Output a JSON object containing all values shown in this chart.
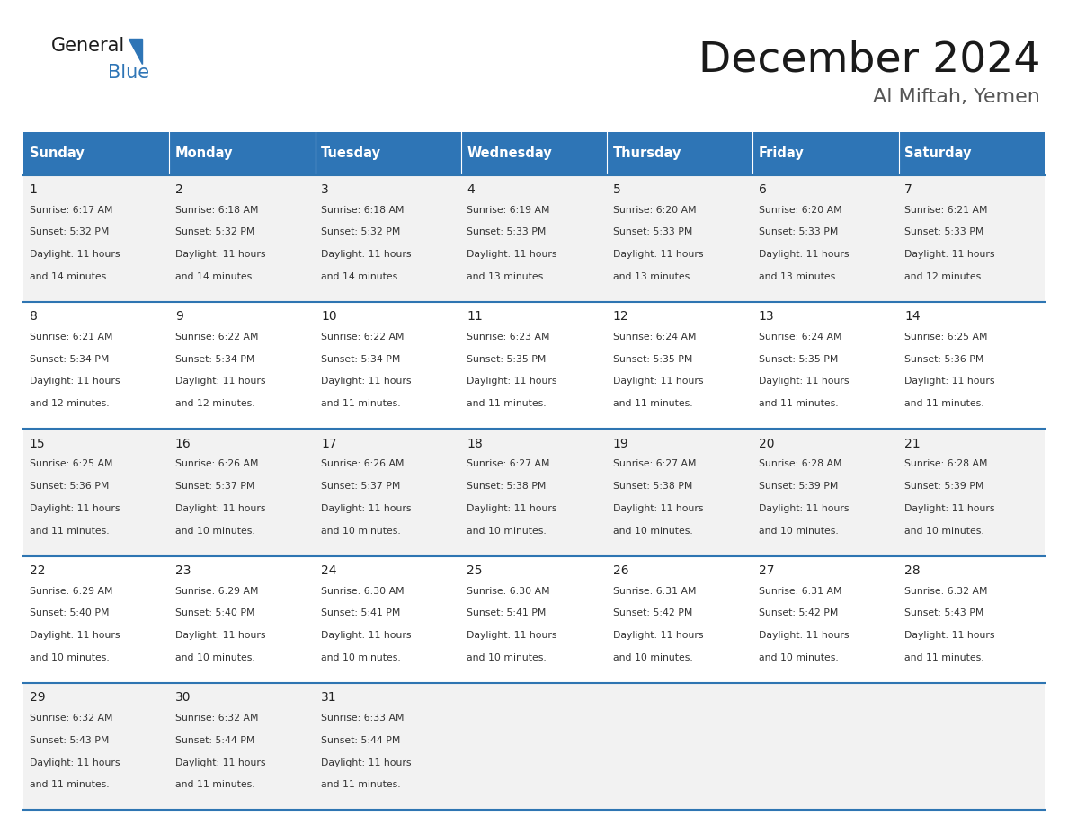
{
  "title": "December 2024",
  "subtitle": "Al Miftah, Yemen",
  "header_color": "#2E75B6",
  "header_text_color": "#FFFFFF",
  "cell_bg_even": "#F2F2F2",
  "cell_bg_odd": "#FFFFFF",
  "day_headers": [
    "Sunday",
    "Monday",
    "Tuesday",
    "Wednesday",
    "Thursday",
    "Friday",
    "Saturday"
  ],
  "separator_color": "#2E75B2",
  "days": [
    {
      "day": 1,
      "col": 0,
      "row": 0,
      "sunrise": "6:17 AM",
      "sunset": "5:32 PM",
      "daylight": "11 hours and 14 minutes."
    },
    {
      "day": 2,
      "col": 1,
      "row": 0,
      "sunrise": "6:18 AM",
      "sunset": "5:32 PM",
      "daylight": "11 hours and 14 minutes."
    },
    {
      "day": 3,
      "col": 2,
      "row": 0,
      "sunrise": "6:18 AM",
      "sunset": "5:32 PM",
      "daylight": "11 hours and 14 minutes."
    },
    {
      "day": 4,
      "col": 3,
      "row": 0,
      "sunrise": "6:19 AM",
      "sunset": "5:33 PM",
      "daylight": "11 hours and 13 minutes."
    },
    {
      "day": 5,
      "col": 4,
      "row": 0,
      "sunrise": "6:20 AM",
      "sunset": "5:33 PM",
      "daylight": "11 hours and 13 minutes."
    },
    {
      "day": 6,
      "col": 5,
      "row": 0,
      "sunrise": "6:20 AM",
      "sunset": "5:33 PM",
      "daylight": "11 hours and 13 minutes."
    },
    {
      "day": 7,
      "col": 6,
      "row": 0,
      "sunrise": "6:21 AM",
      "sunset": "5:33 PM",
      "daylight": "11 hours and 12 minutes."
    },
    {
      "day": 8,
      "col": 0,
      "row": 1,
      "sunrise": "6:21 AM",
      "sunset": "5:34 PM",
      "daylight": "11 hours and 12 minutes."
    },
    {
      "day": 9,
      "col": 1,
      "row": 1,
      "sunrise": "6:22 AM",
      "sunset": "5:34 PM",
      "daylight": "11 hours and 12 minutes."
    },
    {
      "day": 10,
      "col": 2,
      "row": 1,
      "sunrise": "6:22 AM",
      "sunset": "5:34 PM",
      "daylight": "11 hours and 11 minutes."
    },
    {
      "day": 11,
      "col": 3,
      "row": 1,
      "sunrise": "6:23 AM",
      "sunset": "5:35 PM",
      "daylight": "11 hours and 11 minutes."
    },
    {
      "day": 12,
      "col": 4,
      "row": 1,
      "sunrise": "6:24 AM",
      "sunset": "5:35 PM",
      "daylight": "11 hours and 11 minutes."
    },
    {
      "day": 13,
      "col": 5,
      "row": 1,
      "sunrise": "6:24 AM",
      "sunset": "5:35 PM",
      "daylight": "11 hours and 11 minutes."
    },
    {
      "day": 14,
      "col": 6,
      "row": 1,
      "sunrise": "6:25 AM",
      "sunset": "5:36 PM",
      "daylight": "11 hours and 11 minutes."
    },
    {
      "day": 15,
      "col": 0,
      "row": 2,
      "sunrise": "6:25 AM",
      "sunset": "5:36 PM",
      "daylight": "11 hours and 11 minutes."
    },
    {
      "day": 16,
      "col": 1,
      "row": 2,
      "sunrise": "6:26 AM",
      "sunset": "5:37 PM",
      "daylight": "11 hours and 10 minutes."
    },
    {
      "day": 17,
      "col": 2,
      "row": 2,
      "sunrise": "6:26 AM",
      "sunset": "5:37 PM",
      "daylight": "11 hours and 10 minutes."
    },
    {
      "day": 18,
      "col": 3,
      "row": 2,
      "sunrise": "6:27 AM",
      "sunset": "5:38 PM",
      "daylight": "11 hours and 10 minutes."
    },
    {
      "day": 19,
      "col": 4,
      "row": 2,
      "sunrise": "6:27 AM",
      "sunset": "5:38 PM",
      "daylight": "11 hours and 10 minutes."
    },
    {
      "day": 20,
      "col": 5,
      "row": 2,
      "sunrise": "6:28 AM",
      "sunset": "5:39 PM",
      "daylight": "11 hours and 10 minutes."
    },
    {
      "day": 21,
      "col": 6,
      "row": 2,
      "sunrise": "6:28 AM",
      "sunset": "5:39 PM",
      "daylight": "11 hours and 10 minutes."
    },
    {
      "day": 22,
      "col": 0,
      "row": 3,
      "sunrise": "6:29 AM",
      "sunset": "5:40 PM",
      "daylight": "11 hours and 10 minutes."
    },
    {
      "day": 23,
      "col": 1,
      "row": 3,
      "sunrise": "6:29 AM",
      "sunset": "5:40 PM",
      "daylight": "11 hours and 10 minutes."
    },
    {
      "day": 24,
      "col": 2,
      "row": 3,
      "sunrise": "6:30 AM",
      "sunset": "5:41 PM",
      "daylight": "11 hours and 10 minutes."
    },
    {
      "day": 25,
      "col": 3,
      "row": 3,
      "sunrise": "6:30 AM",
      "sunset": "5:41 PM",
      "daylight": "11 hours and 10 minutes."
    },
    {
      "day": 26,
      "col": 4,
      "row": 3,
      "sunrise": "6:31 AM",
      "sunset": "5:42 PM",
      "daylight": "11 hours and 10 minutes."
    },
    {
      "day": 27,
      "col": 5,
      "row": 3,
      "sunrise": "6:31 AM",
      "sunset": "5:42 PM",
      "daylight": "11 hours and 10 minutes."
    },
    {
      "day": 28,
      "col": 6,
      "row": 3,
      "sunrise": "6:32 AM",
      "sunset": "5:43 PM",
      "daylight": "11 hours and 11 minutes."
    },
    {
      "day": 29,
      "col": 0,
      "row": 4,
      "sunrise": "6:32 AM",
      "sunset": "5:43 PM",
      "daylight": "11 hours and 11 minutes."
    },
    {
      "day": 30,
      "col": 1,
      "row": 4,
      "sunrise": "6:32 AM",
      "sunset": "5:44 PM",
      "daylight": "11 hours and 11 minutes."
    },
    {
      "day": 31,
      "col": 2,
      "row": 4,
      "sunrise": "6:33 AM",
      "sunset": "5:44 PM",
      "daylight": "11 hours and 11 minutes."
    }
  ]
}
